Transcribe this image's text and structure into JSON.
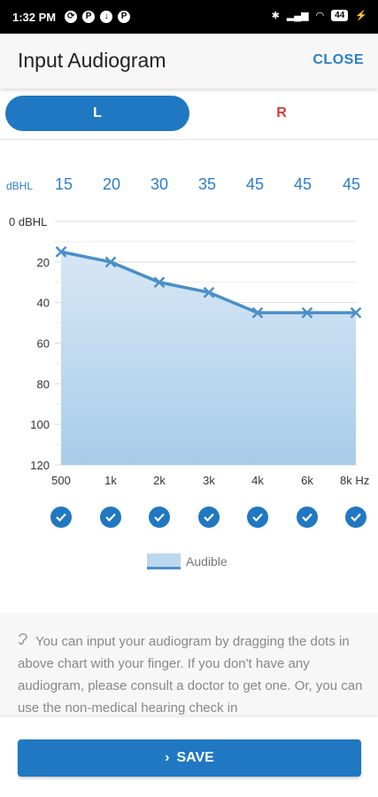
{
  "status_bar": {
    "time": "1:32 PM",
    "battery": "44"
  },
  "header": {
    "title": "Input Audiogram",
    "close_label": "CLOSE"
  },
  "ear_tabs": {
    "left_label": "L",
    "right_label": "R",
    "selected": "L"
  },
  "db_row": {
    "unit": "dBHL",
    "values": [
      "15",
      "20",
      "30",
      "35",
      "45",
      "45",
      "45"
    ]
  },
  "legend": {
    "label": "Audible"
  },
  "info": {
    "text": "You can input your audiogram by dragging the dots in above chart with your finger. If you don't have any audiogram, please consult a doctor to get one. Or, you can use the non-medical hearing check in"
  },
  "save_label": "SAVE",
  "colors": {
    "accent": "#1f78c1",
    "right_ear": "#d33a3a",
    "fill": "#bcd8ee",
    "line": "#4a8fc8"
  },
  "chart_data": {
    "type": "area",
    "x": [
      "500",
      "1k",
      "2k",
      "3k",
      "4k",
      "6k",
      "8k"
    ],
    "x_unit": "Hz",
    "y": [
      15,
      20,
      30,
      35,
      45,
      45,
      45
    ],
    "ylim": [
      0,
      120
    ],
    "y_reversed": true,
    "y_ticks": [
      "0 dBHL",
      "20",
      "40",
      "60",
      "80",
      "100",
      "120"
    ],
    "series": [
      {
        "name": "Audible",
        "values": [
          15,
          20,
          30,
          35,
          45,
          45,
          45
        ]
      }
    ],
    "grid": true
  }
}
